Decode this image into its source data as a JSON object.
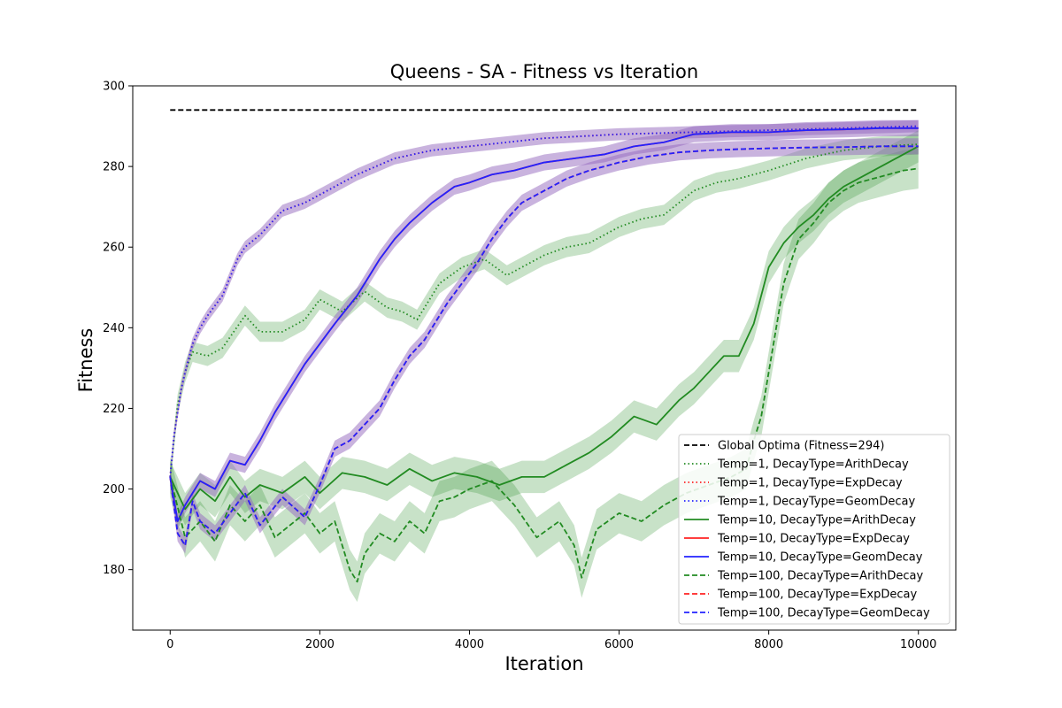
{
  "chart_data": {
    "type": "line",
    "title": "Queens - SA - Fitness vs Iteration",
    "xlabel": "Iteration",
    "ylabel": "Fitness",
    "xlim": [
      -500,
      10500
    ],
    "ylim": [
      165,
      300
    ],
    "xticks": [
      0,
      2000,
      4000,
      6000,
      8000,
      10000
    ],
    "yticks": [
      180,
      200,
      220,
      240,
      260,
      280,
      300
    ],
    "grid": false,
    "legend_position": "lower-right",
    "reference_line": {
      "name": "Global Optima (Fitness=294)",
      "y": 294,
      "x": [
        0,
        10000
      ],
      "color": "#000000",
      "style": "dashed"
    },
    "series": [
      {
        "name": "Temp=1, DecayType=ArithDecay",
        "color": "#228b22",
        "style": "dotted",
        "band": 2.5,
        "x": [
          0,
          100,
          200,
          300,
          500,
          700,
          1000,
          1200,
          1500,
          1800,
          2000,
          2300,
          2600,
          2900,
          3100,
          3300,
          3600,
          3900,
          4200,
          4500,
          5000,
          5300,
          5600,
          6000,
          6300,
          6600,
          7000,
          7300,
          7600,
          8000,
          8500,
          9000,
          9500,
          10000
        ],
        "y": [
          203,
          221,
          229,
          234,
          233,
          235,
          243,
          239,
          239,
          242,
          247,
          244,
          249,
          245,
          244,
          242,
          251,
          255,
          257,
          253,
          258,
          260,
          261,
          265,
          267,
          268,
          274,
          276,
          277,
          279,
          282,
          284,
          285,
          285.5
        ]
      },
      {
        "name": "Temp=1, DecayType=ExpDecay",
        "color": "#ff2222",
        "style": "dotted",
        "band": 0,
        "x": [
          0,
          50,
          100,
          150,
          200,
          300,
          400,
          500,
          700,
          900,
          1000,
          1200,
          1500,
          1800,
          2000,
          2500,
          3000,
          3500,
          4000,
          4500,
          5000,
          6000,
          7000,
          8000,
          9000,
          10000
        ],
        "y": [
          203,
          213,
          219,
          225,
          229,
          236,
          240,
          243,
          248,
          257,
          260,
          263,
          269,
          271,
          273,
          278,
          282,
          284,
          285,
          286,
          287,
          288,
          288.5,
          289,
          289.5,
          290
        ]
      },
      {
        "name": "Temp=1, DecayType=GeomDecay",
        "color": "#2222ff",
        "style": "dotted",
        "band": 1.5,
        "x": [
          0,
          50,
          100,
          150,
          200,
          300,
          400,
          500,
          700,
          900,
          1000,
          1200,
          1500,
          1800,
          2000,
          2500,
          3000,
          3500,
          4000,
          4500,
          5000,
          6000,
          7000,
          8000,
          9000,
          10000
        ],
        "y": [
          203,
          213,
          219,
          225,
          229,
          236,
          240,
          243,
          248,
          257,
          260,
          263,
          269,
          271,
          273,
          278,
          282,
          284,
          285,
          286,
          287,
          288,
          288.5,
          289,
          289.5,
          290
        ]
      },
      {
        "name": "Temp=10, DecayType=ArithDecay",
        "color": "#228b22",
        "style": "solid",
        "band": 4,
        "x": [
          0,
          200,
          400,
          600,
          800,
          1000,
          1200,
          1500,
          1800,
          2000,
          2300,
          2600,
          2900,
          3200,
          3500,
          3800,
          4100,
          4400,
          4700,
          5000,
          5300,
          5600,
          5900,
          6200,
          6500,
          6800,
          7000,
          7200,
          7400,
          7600,
          7800,
          7900,
          8000,
          8200,
          8400,
          8600,
          8800,
          9000,
          9200,
          9400,
          9600,
          9800,
          10000
        ],
        "y": [
          203,
          195,
          200,
          197,
          203,
          198,
          201,
          199,
          203,
          199,
          204,
          203,
          201,
          205,
          202,
          204,
          203,
          201,
          203,
          203,
          206,
          209,
          213,
          218,
          216,
          222,
          225,
          229,
          233,
          233,
          241,
          248,
          255,
          261,
          265,
          268,
          272,
          275,
          277,
          279,
          281,
          283,
          285
        ]
      },
      {
        "name": "Temp=10, DecayType=ExpDecay",
        "color": "#ff2222",
        "style": "solid",
        "band": 0,
        "x": [
          0,
          100,
          200,
          400,
          600,
          800,
          1000,
          1200,
          1400,
          1600,
          1800,
          2000,
          2200,
          2500,
          2800,
          3000,
          3200,
          3500,
          3800,
          4000,
          4300,
          4600,
          5000,
          5400,
          5800,
          6200,
          6600,
          7000,
          7500,
          8000,
          8500,
          9000,
          9500,
          10000
        ],
        "y": [
          203,
          192,
          196,
          202,
          200,
          207,
          206,
          212,
          219,
          225,
          231,
          236,
          241,
          248,
          257,
          262,
          266,
          271,
          275,
          276,
          278,
          279,
          281,
          282,
          283,
          285,
          286,
          288,
          288.5,
          288.5,
          289,
          289.2,
          289.5,
          289.5
        ]
      },
      {
        "name": "Temp=10, DecayType=GeomDecay",
        "color": "#2222ff",
        "style": "solid",
        "band": 2,
        "x": [
          0,
          100,
          200,
          400,
          600,
          800,
          1000,
          1200,
          1400,
          1600,
          1800,
          2000,
          2200,
          2500,
          2800,
          3000,
          3200,
          3500,
          3800,
          4000,
          4300,
          4600,
          5000,
          5400,
          5800,
          6200,
          6600,
          7000,
          7500,
          8000,
          8500,
          9000,
          9500,
          10000
        ],
        "y": [
          203,
          192,
          196,
          202,
          200,
          207,
          206,
          212,
          219,
          225,
          231,
          236,
          241,
          248,
          257,
          262,
          266,
          271,
          275,
          276,
          278,
          279,
          281,
          282,
          283,
          285,
          286,
          288,
          288.5,
          288.5,
          289,
          289.2,
          289.5,
          289.5
        ]
      },
      {
        "name": "Temp=100, DecayType=ArithDecay",
        "color": "#228b22",
        "style": "dashed",
        "band": 5,
        "x": [
          0,
          200,
          400,
          600,
          800,
          1000,
          1200,
          1400,
          1600,
          1800,
          2000,
          2200,
          2400,
          2500,
          2600,
          2800,
          3000,
          3200,
          3400,
          3600,
          3800,
          4000,
          4300,
          4600,
          4900,
          5200,
          5400,
          5500,
          5700,
          6000,
          6300,
          6600,
          6900,
          7200,
          7500,
          7700,
          7800,
          7900,
          8000,
          8100,
          8200,
          8400,
          8600,
          8800,
          9000,
          9200,
          9500,
          9800,
          10000
        ],
        "y": [
          203,
          188,
          192,
          187,
          196,
          192,
          196,
          188,
          191,
          194,
          189,
          192,
          180,
          177,
          184,
          189,
          187,
          192,
          189,
          197,
          198,
          200,
          202,
          196,
          188,
          192,
          186,
          178,
          190,
          194,
          192,
          196,
          199,
          201,
          203,
          205,
          212,
          218,
          229,
          240,
          251,
          262,
          266,
          271,
          274,
          276,
          277.5,
          279,
          279.5
        ]
      },
      {
        "name": "Temp=100, DecayType=ExpDecay",
        "color": "#ff2222",
        "style": "dashed",
        "band": 0,
        "x": [
          0,
          100,
          200,
          300,
          400,
          600,
          800,
          1000,
          1200,
          1500,
          1800,
          2000,
          2200,
          2400,
          2600,
          2800,
          3000,
          3200,
          3400,
          3500,
          3700,
          3900,
          4100,
          4300,
          4500,
          4700,
          5000,
          5300,
          5600,
          6000,
          6400,
          6800,
          7200,
          7600,
          8000,
          8500,
          9000,
          9500,
          10000
        ],
        "y": [
          203,
          189,
          186,
          197,
          192,
          189,
          194,
          199,
          191,
          198,
          193,
          201,
          210,
          212,
          216,
          220,
          227,
          233,
          237,
          240,
          246,
          251,
          256,
          262,
          267,
          271,
          274,
          277,
          279,
          281,
          282.5,
          283.5,
          284,
          284.3,
          284.5,
          284.7,
          284.8,
          285,
          285
        ]
      },
      {
        "name": "Temp=100, DecayType=GeomDecay",
        "color": "#2222ff",
        "style": "dashed",
        "band": 2,
        "x": [
          0,
          100,
          200,
          300,
          400,
          600,
          800,
          1000,
          1200,
          1500,
          1800,
          2000,
          2200,
          2400,
          2600,
          2800,
          3000,
          3200,
          3400,
          3500,
          3700,
          3900,
          4100,
          4300,
          4500,
          4700,
          5000,
          5300,
          5600,
          6000,
          6400,
          6800,
          7200,
          7600,
          8000,
          8500,
          9000,
          9500,
          10000
        ],
        "y": [
          203,
          189,
          186,
          197,
          192,
          189,
          194,
          199,
          191,
          198,
          193,
          201,
          210,
          212,
          216,
          220,
          227,
          233,
          237,
          240,
          246,
          251,
          256,
          262,
          267,
          271,
          274,
          277,
          279,
          281,
          282.5,
          283.5,
          284,
          284.3,
          284.5,
          284.7,
          284.8,
          285,
          285
        ]
      }
    ]
  }
}
